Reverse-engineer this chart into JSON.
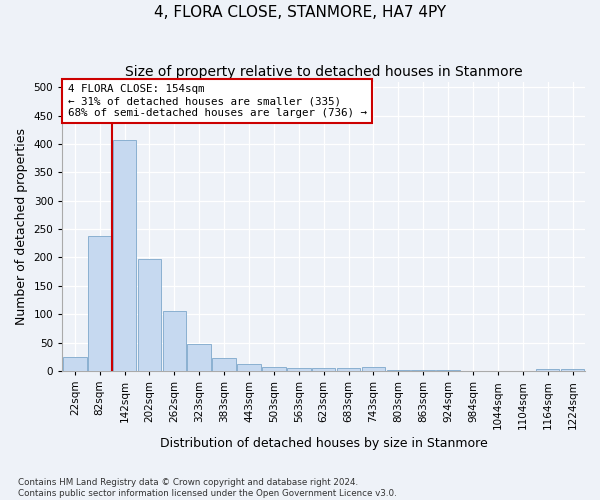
{
  "title": "4, FLORA CLOSE, STANMORE, HA7 4PY",
  "subtitle": "Size of property relative to detached houses in Stanmore",
  "xlabel": "Distribution of detached houses by size in Stanmore",
  "ylabel": "Number of detached properties",
  "bin_labels": [
    "22sqm",
    "82sqm",
    "142sqm",
    "202sqm",
    "262sqm",
    "323sqm",
    "383sqm",
    "443sqm",
    "503sqm",
    "563sqm",
    "623sqm",
    "683sqm",
    "743sqm",
    "803sqm",
    "863sqm",
    "924sqm",
    "984sqm",
    "1044sqm",
    "1104sqm",
    "1164sqm",
    "1224sqm"
  ],
  "bar_values": [
    25,
    237,
    407,
    198,
    105,
    48,
    22,
    12,
    7,
    5,
    5,
    5,
    6,
    2,
    2,
    1,
    0,
    0,
    0,
    4,
    4
  ],
  "bar_color": "#c6d9f0",
  "bar_edgecolor": "#8ab0d0",
  "vline_color": "#cc0000",
  "vline_pos": 1.5,
  "property_label": "4 FLORA CLOSE: 154sqm",
  "annotation_line1": "← 31% of detached houses are smaller (335)",
  "annotation_line2": "68% of semi-detached houses are larger (736) →",
  "annotation_box_color": "#ffffff",
  "annotation_box_edgecolor": "#cc0000",
  "ylim": [
    0,
    510
  ],
  "yticks": [
    0,
    50,
    100,
    150,
    200,
    250,
    300,
    350,
    400,
    450,
    500
  ],
  "footer1": "Contains HM Land Registry data © Crown copyright and database right 2024.",
  "footer2": "Contains public sector information licensed under the Open Government Licence v3.0.",
  "background_color": "#eef2f8",
  "plot_bg_color": "#eef2f8",
  "title_fontsize": 11,
  "subtitle_fontsize": 10,
  "tick_fontsize": 7.5,
  "ylabel_fontsize": 9,
  "xlabel_fontsize": 9
}
